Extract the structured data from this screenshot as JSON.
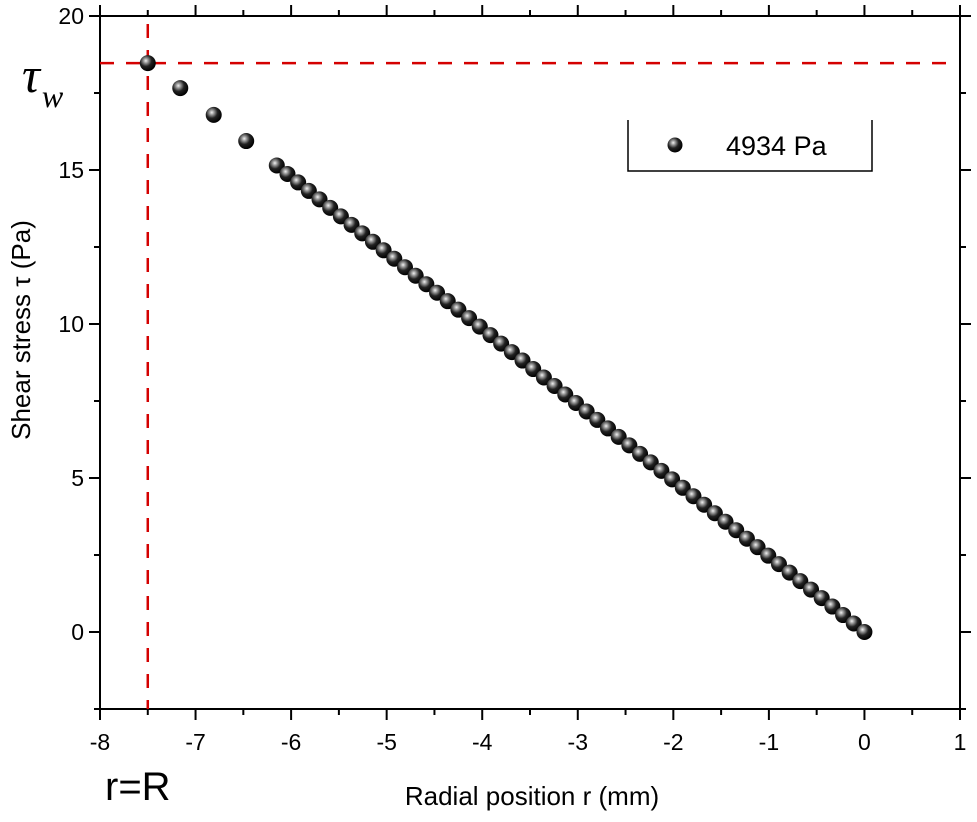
{
  "chart_data": {
    "type": "scatter",
    "title": "",
    "xlabel": "Radial position r (mm)",
    "ylabel": "Shear stress τ (Pa)",
    "xlim": [
      -8,
      1
    ],
    "ylim": [
      -2.5,
      20
    ],
    "xticks": [
      -8,
      -7,
      -6,
      -5,
      -4,
      -3,
      -2,
      -1,
      0,
      1
    ],
    "yticks": [
      0,
      5,
      10,
      15,
      20
    ],
    "x_minor_step": 0.5,
    "y_minor_step": 2.5,
    "grid": false,
    "legend_position": "upper right",
    "series": [
      {
        "name": "4934 Pa",
        "marker": "sphere",
        "color": "#111111",
        "sparse_points": [
          {
            "x": -7.5,
            "y": 18.47
          },
          {
            "x": -7.16,
            "y": 17.66
          },
          {
            "x": -6.81,
            "y": 16.79
          },
          {
            "x": -6.47,
            "y": 15.94
          }
        ],
        "dense_range": {
          "x_start": -6.15,
          "x_end": 0.0,
          "count": 56,
          "slope": -2.463
        }
      }
    ],
    "annotations": [
      {
        "type": "hline",
        "y": 18.47,
        "style": "dashed",
        "color": "#d40000",
        "label": "τ_w"
      },
      {
        "type": "vline",
        "x": -7.5,
        "style": "dashed",
        "color": "#d40000",
        "label": "r=R"
      }
    ]
  },
  "labels": {
    "x_axis_title": "Radial position r (mm)",
    "y_axis_title": "Shear stress τ (Pa)",
    "tau_symbol": "τ",
    "tau_subscript": "w",
    "r_eq_R": "r=R",
    "legend_entry": "4934 Pa"
  },
  "colors": {
    "axis": "#000000",
    "marker": "#111111",
    "marker_highlight": "#e8e8e8",
    "dashed_line": "#d40000"
  }
}
